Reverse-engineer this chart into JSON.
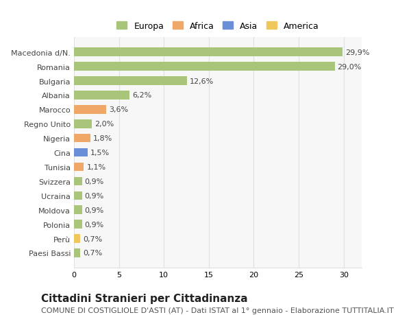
{
  "categories": [
    "Paesi Bassi",
    "Perù",
    "Polonia",
    "Moldova",
    "Ucraina",
    "Svizzera",
    "Tunisia",
    "Cina",
    "Nigeria",
    "Regno Unito",
    "Marocco",
    "Albania",
    "Bulgaria",
    "Romania",
    "Macedonia d/N."
  ],
  "values": [
    0.7,
    0.7,
    0.9,
    0.9,
    0.9,
    0.9,
    1.1,
    1.5,
    1.8,
    2.0,
    3.6,
    6.2,
    12.6,
    29.0,
    29.9
  ],
  "labels": [
    "0,7%",
    "0,7%",
    "0,9%",
    "0,9%",
    "0,9%",
    "0,9%",
    "1,1%",
    "1,5%",
    "1,8%",
    "2,0%",
    "3,6%",
    "6,2%",
    "12,6%",
    "29,0%",
    "29,9%"
  ],
  "colors": [
    "#a8c57a",
    "#f0c75a",
    "#a8c57a",
    "#a8c57a",
    "#a8c57a",
    "#a8c57a",
    "#f0a868",
    "#6a8fd8",
    "#f0a868",
    "#a8c57a",
    "#f0a868",
    "#a8c57a",
    "#a8c57a",
    "#a8c57a",
    "#a8c57a"
  ],
  "legend_labels": [
    "Europa",
    "Africa",
    "Asia",
    "America"
  ],
  "legend_colors": [
    "#a8c57a",
    "#f0a868",
    "#6a8fd8",
    "#f0c75a"
  ],
  "title": "Cittadini Stranieri per Cittadinanza",
  "subtitle": "COMUNE DI COSTIGLIOLE D'ASTI (AT) - Dati ISTAT al 1° gennaio - Elaborazione TUTTITALIA.IT",
  "xlim": [
    0,
    32
  ],
  "background_color": "#ffffff",
  "grid_color": "#e0e0e0",
  "bar_height": 0.6,
  "title_fontsize": 11,
  "subtitle_fontsize": 8,
  "label_fontsize": 8,
  "tick_fontsize": 8
}
